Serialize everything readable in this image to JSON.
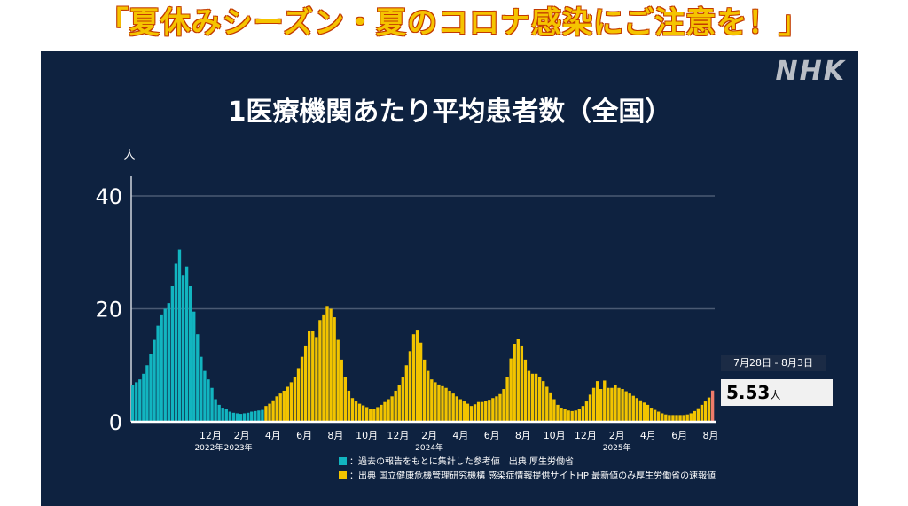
{
  "headline": "「夏休みシーズン・夏のコロナ感染にご注意を！」",
  "logo": "NHK",
  "colors": {
    "background": "#0e2240",
    "cyan": "#12b5c0",
    "yellow": "#f2c400",
    "latest": "#ef7b6a",
    "grid": "#4a5a73"
  },
  "tooltip": {
    "date": "7月28日 - 8月3日",
    "value": "5.53",
    "unit": "人"
  },
  "legend": [
    {
      "color": "#12b5c0",
      "label": "：過去の報告をもとに集計した参考値　出典 厚生労働省"
    },
    {
      "color": "#f2c400",
      "label": "：出典 国立健康危機管理研究機構 感染症情報提供サイトHP 最新値のみ厚生労働省の速報値"
    }
  ],
  "chart_data": {
    "type": "bar",
    "title": "1医療機関あたり平均患者数（全国）",
    "ylabel": "人",
    "ylim": [
      0,
      40
    ],
    "yticks": [
      0,
      20,
      40
    ],
    "x_ticks": [
      "12月",
      "2月",
      "4月",
      "6月",
      "8月",
      "10月",
      "12月",
      "2月",
      "4月",
      "6月",
      "8月",
      "10月",
      "12月",
      "2月",
      "4月",
      "6月",
      "8月"
    ],
    "year_labels": [
      {
        "label": "2022年",
        "after_tick": 0
      },
      {
        "label": "2023年",
        "after_tick": 1
      },
      {
        "label": "2024年",
        "after_tick": 7
      },
      {
        "label": "2025年",
        "after_tick": 13
      }
    ],
    "series": [
      {
        "source": "reference",
        "color": "#12b5c0",
        "values": [
          6.5,
          7.0,
          7.5,
          8.5,
          10,
          12,
          14.5,
          17,
          19,
          20,
          21,
          24,
          28,
          30.5,
          26,
          27.5,
          24,
          19.5,
          15.5,
          11.5,
          9,
          7.5,
          6,
          4,
          3,
          2.5,
          2.2,
          1.8,
          1.6,
          1.5,
          1.4,
          1.5,
          1.6,
          1.8,
          1.9,
          2.0,
          2.1
        ]
      },
      {
        "source": "official",
        "color": "#f2c400",
        "values": [
          2.8,
          3.2,
          3.8,
          4.5,
          5.0,
          5.5,
          6.2,
          7.0,
          8.0,
          9.5,
          11.5,
          13.5,
          16,
          16,
          15,
          18,
          19,
          20.5,
          20,
          18.5,
          14.5,
          11,
          8,
          5.5,
          4.2,
          3.6,
          3.2,
          2.9,
          2.6,
          2.2,
          2.3,
          2.6,
          3,
          3.5,
          4,
          4.5,
          5.5,
          6.5,
          8,
          10,
          12.5,
          15.5,
          16.3,
          14,
          11,
          9,
          7.5,
          7,
          6.6,
          6.3,
          6,
          5.5,
          5,
          4.5,
          4,
          3.6,
          3.2,
          2.8,
          3.1,
          3.5,
          3.5,
          3.7,
          3.9,
          4.2,
          4.5,
          4.9,
          5.8,
          8,
          11.2,
          13.8,
          14.7,
          13.5,
          11,
          9,
          8.5,
          8.5,
          8,
          7.2,
          6.2,
          5.2,
          4,
          3,
          2.5,
          2.2,
          2.0,
          1.9,
          2.0,
          2.2,
          2.8,
          3.6,
          4.8,
          6.0,
          7.2,
          5.8,
          7.3,
          6.0,
          6.0,
          6.5,
          6.0,
          5.8,
          5.4,
          5.0,
          4.6,
          4.2,
          3.8,
          3.4,
          3.0,
          2.5,
          2.1,
          1.8,
          1.5,
          1.3,
          1.2,
          1.2,
          1.2,
          1.2,
          1.2,
          1.3,
          1.5,
          1.9,
          2.4,
          3.0,
          3.6,
          4.3
        ]
      },
      {
        "source": "latest",
        "color": "#ef7b6a",
        "values": [
          5.53
        ]
      }
    ]
  }
}
